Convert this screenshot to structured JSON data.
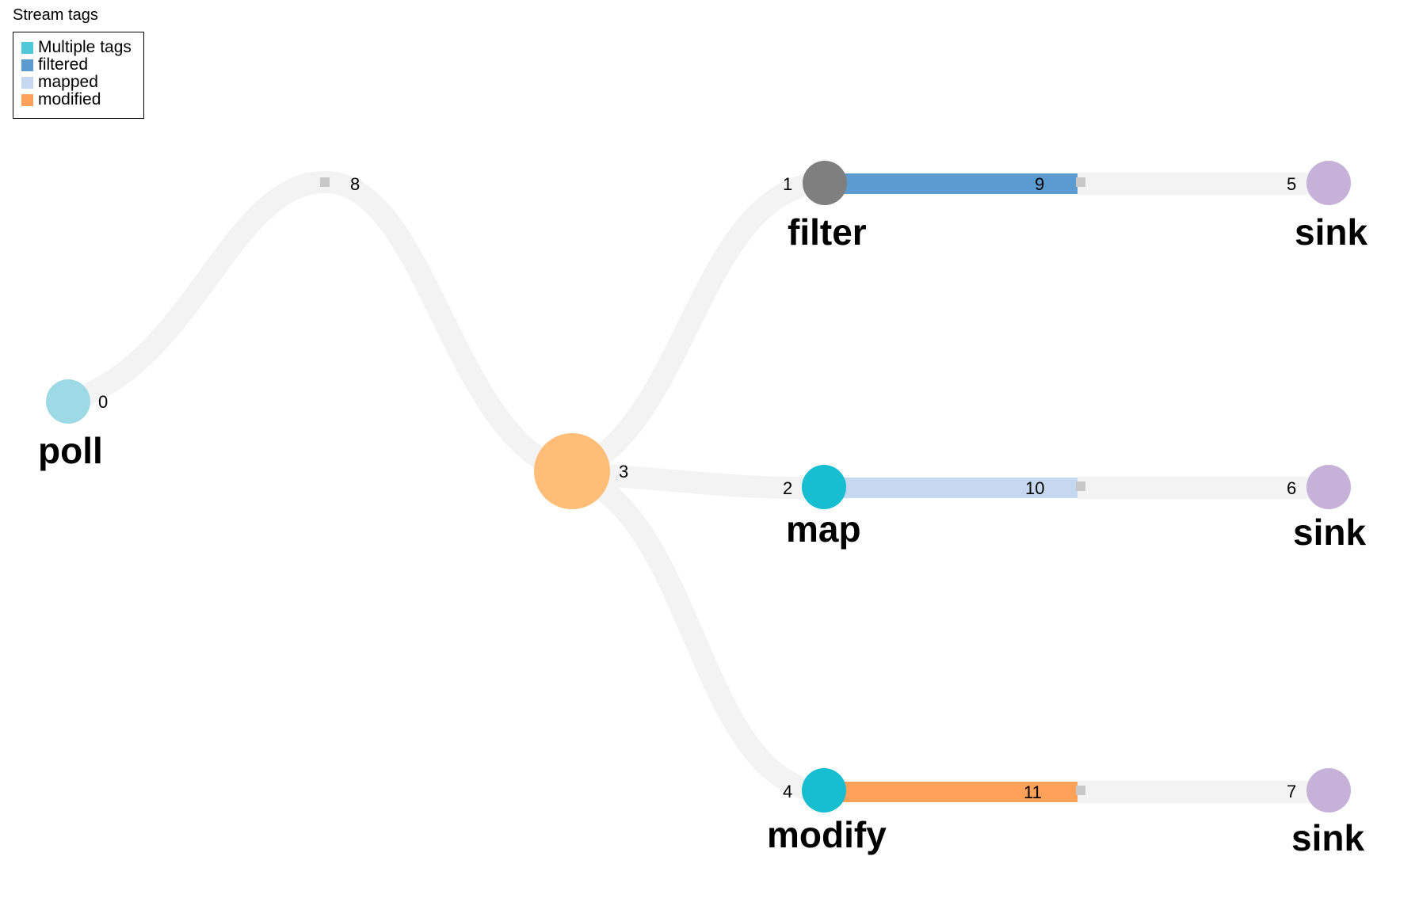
{
  "legend": {
    "title": "Stream tags",
    "items": [
      {
        "label": "Multiple tags",
        "color": "#4fc9d8"
      },
      {
        "label": "filtered",
        "color": "#5b9bd0"
      },
      {
        "label": "mapped",
        "color": "#c6d8ef"
      },
      {
        "label": "modified",
        "color": "#fda059"
      }
    ]
  },
  "colors": {
    "link_default": "#f3f3f3",
    "marker": "#c8c8c8",
    "sink_node": "#c6b2d9",
    "filter_node": "#7f7f7f",
    "tagged_node": "#17becf",
    "poll_node": "#9edae5",
    "split_node": "#ffbd78"
  },
  "nodes": [
    {
      "id": "0",
      "name": "poll"
    },
    {
      "id": "1",
      "name": "filter"
    },
    {
      "id": "2",
      "name": "map"
    },
    {
      "id": "3",
      "name": ""
    },
    {
      "id": "4",
      "name": "modify"
    },
    {
      "id": "5",
      "name": "sink"
    },
    {
      "id": "6",
      "name": "sink"
    },
    {
      "id": "7",
      "name": "sink"
    }
  ],
  "links": [
    {
      "id": "8",
      "source": "0",
      "target": "3",
      "tag": ""
    },
    {
      "id": "9",
      "source": "1",
      "target": "5",
      "tag": "filtered"
    },
    {
      "id": "10",
      "source": "2",
      "target": "6",
      "tag": "mapped"
    },
    {
      "id": "11",
      "source": "4",
      "target": "7",
      "tag": "modified"
    }
  ]
}
